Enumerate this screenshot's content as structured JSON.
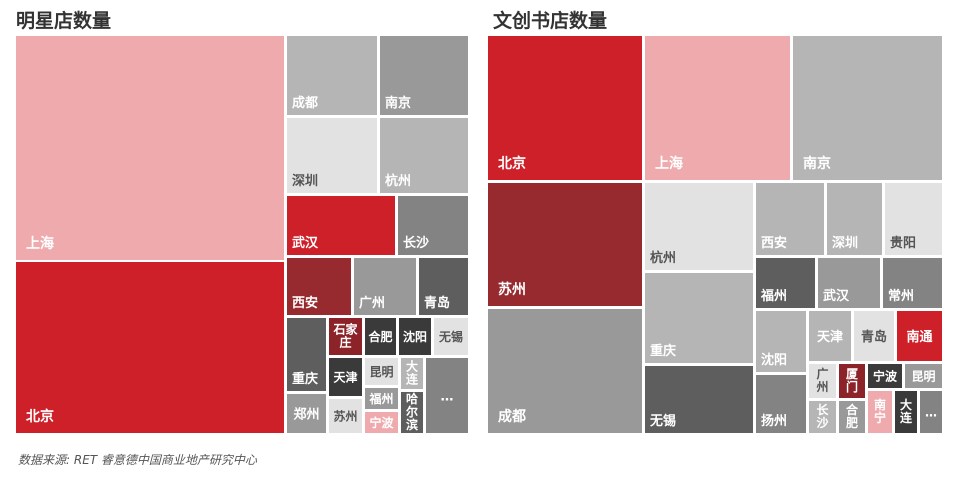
{
  "source": "数据来源: RET 睿意德中国商业地产研究中心",
  "colors": {
    "pink": "#EEAAAD",
    "red": "#CD2029",
    "darkred": "#962A2E",
    "maroon": "#8B2329",
    "dark": "#5E5E5E",
    "black": "#3A3A3A",
    "grey": "#999999",
    "mid": "#838383",
    "lgrey": "#B5B5B5",
    "vlight": "#E2E2E2",
    "white_text": "#FFFFFF",
    "light_text": "#555555"
  },
  "chart_data": [
    {
      "type": "treemap",
      "title": "明星店数量",
      "items": [
        {
          "label": "上海",
          "color": "pink"
        },
        {
          "label": "北京",
          "color": "red"
        },
        {
          "label": "成都",
          "color": "lgrey"
        },
        {
          "label": "南京",
          "color": "grey"
        },
        {
          "label": "深圳",
          "color": "vlight"
        },
        {
          "label": "杭州",
          "color": "lgrey"
        },
        {
          "label": "武汉",
          "color": "red"
        },
        {
          "label": "长沙",
          "color": "mid"
        },
        {
          "label": "西安",
          "color": "darkred"
        },
        {
          "label": "广州",
          "color": "grey"
        },
        {
          "label": "青岛",
          "color": "dark"
        },
        {
          "label": "重庆",
          "color": "dark"
        },
        {
          "label": "石家庄",
          "color": "maroon"
        },
        {
          "label": "合肥",
          "color": "black"
        },
        {
          "label": "沈阳",
          "color": "black"
        },
        {
          "label": "无锡",
          "color": "vlight"
        },
        {
          "label": "天津",
          "color": "black"
        },
        {
          "label": "昆明",
          "color": "vlight"
        },
        {
          "label": "大连",
          "color": "lgrey"
        },
        {
          "label": "福州",
          "color": "grey"
        },
        {
          "label": "宁波",
          "color": "pink"
        },
        {
          "label": "哈尔滨",
          "color": "dark"
        },
        {
          "label": "郑州",
          "color": "grey"
        },
        {
          "label": "苏州",
          "color": "vlight"
        },
        {
          "label": "…",
          "color": "mid"
        }
      ]
    },
    {
      "type": "treemap",
      "title": "文创书店数量",
      "items": [
        {
          "label": "北京",
          "color": "red"
        },
        {
          "label": "上海",
          "color": "pink"
        },
        {
          "label": "南京",
          "color": "lgrey"
        },
        {
          "label": "苏州",
          "color": "darkred"
        },
        {
          "label": "杭州",
          "color": "vlight"
        },
        {
          "label": "西安",
          "color": "lgrey"
        },
        {
          "label": "深圳",
          "color": "lgrey"
        },
        {
          "label": "贵阳",
          "color": "vlight"
        },
        {
          "label": "成都",
          "color": "grey"
        },
        {
          "label": "重庆",
          "color": "lgrey"
        },
        {
          "label": "福州",
          "color": "dark"
        },
        {
          "label": "武汉",
          "color": "grey"
        },
        {
          "label": "常州",
          "color": "mid"
        },
        {
          "label": "天津",
          "color": "lgrey"
        },
        {
          "label": "青岛",
          "color": "vlight"
        },
        {
          "label": "南通",
          "color": "red"
        },
        {
          "label": "沈阳",
          "color": "lgrey"
        },
        {
          "label": "广州",
          "color": "vlight"
        },
        {
          "label": "厦门",
          "color": "maroon"
        },
        {
          "label": "宁波",
          "color": "black"
        },
        {
          "label": "昆明",
          "color": "grey"
        },
        {
          "label": "无锡",
          "color": "dark"
        },
        {
          "label": "扬州",
          "color": "mid"
        },
        {
          "label": "长沙",
          "color": "lgrey"
        },
        {
          "label": "合肥",
          "color": "grey"
        },
        {
          "label": "南宁",
          "color": "pink"
        },
        {
          "label": "大连",
          "color": "black"
        },
        {
          "label": "…",
          "color": "mid"
        }
      ]
    }
  ]
}
